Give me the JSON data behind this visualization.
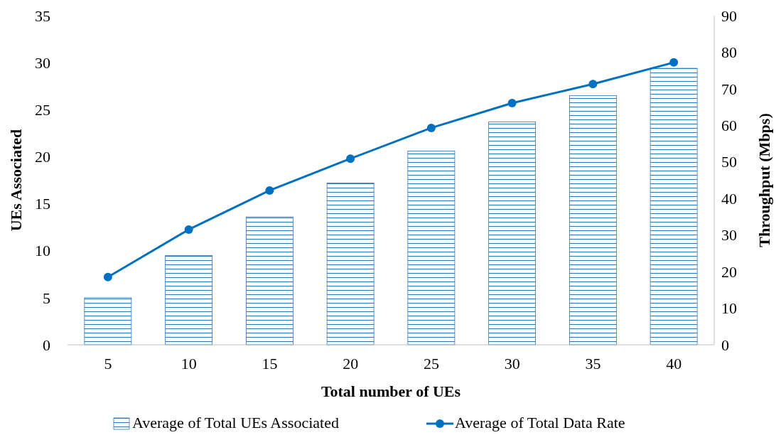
{
  "chart_data": {
    "type": "bar",
    "xlabel": "Total number of UEs",
    "ylabel": "UEs Associated",
    "y2label": "Throughput (Mbps)",
    "categories": [
      "5",
      "10",
      "15",
      "20",
      "25",
      "30",
      "35",
      "40"
    ],
    "series": [
      {
        "name": "Average of Total UEs Associated",
        "color": "#2e75b6",
        "values": [
          5,
          9.5,
          13.6,
          17.2,
          20.6,
          23.7,
          26.5,
          29.4
        ]
      },
      {
        "name": "Average of Total Data Rate",
        "type": "line",
        "axis": "y2",
        "color": "#0070c0",
        "marker": "circle",
        "values": [
          18.5,
          31.5,
          42.2,
          50.9,
          59.3,
          66.1,
          71.3,
          77.2
        ]
      }
    ],
    "ylim": [
      0,
      35
    ],
    "yticks": [
      0,
      5,
      10,
      15,
      20,
      25,
      30,
      35
    ],
    "y2lim": [
      0,
      90
    ],
    "y2ticks": [
      0,
      10,
      20,
      30,
      40,
      50,
      60,
      70,
      80,
      90
    ],
    "legend": "bottom",
    "grid": false
  }
}
